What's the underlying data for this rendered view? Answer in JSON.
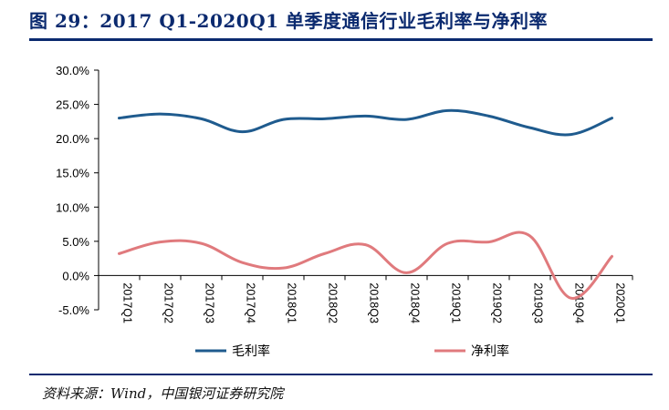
{
  "figure": {
    "title": "图 29：2017 Q1-2020Q1 单季度通信行业毛利率与净利率",
    "source": "资料来源：Wind，中国银河证券研究院"
  },
  "colors": {
    "title": "#0b2a6f",
    "rule": "#0b2a6f",
    "gross_margin": "#1f5b8e",
    "net_margin": "#e07a7d",
    "axis": "#000000"
  },
  "chart_data": {
    "type": "line",
    "title": "",
    "xlabel": "",
    "ylabel": "",
    "categories": [
      "2017Q1",
      "2017Q2",
      "2017Q3",
      "2017Q4",
      "2018Q1",
      "2018Q2",
      "2018Q3",
      "2018Q4",
      "2019Q1",
      "2019Q2",
      "2019Q3",
      "2019Q4",
      "2020Q1"
    ],
    "y_ticks": [
      "30.0%",
      "25.0%",
      "20.0%",
      "15.0%",
      "10.0%",
      "5.0%",
      "0.0%",
      "-5.0%"
    ],
    "ylim": [
      -5,
      30
    ],
    "y_unit": "%",
    "grid": false,
    "smooth": true,
    "legend_position": "bottom",
    "series": [
      {
        "name": "毛利率",
        "color": "#1f5b8e",
        "values": [
          23.0,
          23.6,
          22.9,
          21.0,
          22.8,
          22.9,
          23.3,
          22.8,
          24.1,
          23.3,
          21.6,
          20.6,
          23.0
        ]
      },
      {
        "name": "净利率",
        "color": "#e07a7d",
        "values": [
          3.2,
          4.9,
          4.7,
          1.9,
          1.1,
          3.2,
          4.5,
          0.4,
          4.7,
          4.9,
          5.8,
          -3.3,
          2.8
        ]
      }
    ]
  }
}
